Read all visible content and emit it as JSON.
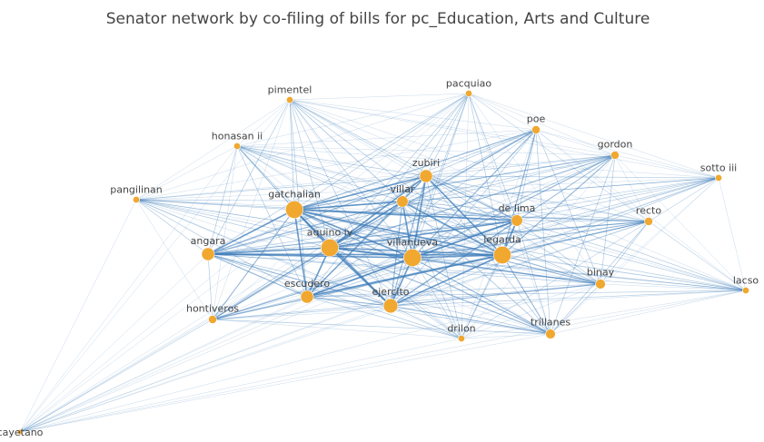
{
  "title": "Senator network by co-filing of bills for pc_Education, Arts and Culture",
  "colors": {
    "node_fill": "#f0a830",
    "edge": "#3a7ab8",
    "text": "#444444"
  },
  "chart_data": {
    "type": "network",
    "nodes": [
      {
        "id": "pimentel",
        "label": "pimentel",
        "size": 2
      },
      {
        "id": "pacquiao",
        "label": "pacquiao",
        "size": 2
      },
      {
        "id": "poe",
        "label": "poe",
        "size": 3
      },
      {
        "id": "honasan",
        "label": "honasan ii",
        "size": 2
      },
      {
        "id": "gordon",
        "label": "gordon",
        "size": 3
      },
      {
        "id": "zubiri",
        "label": "zubiri",
        "size": 6
      },
      {
        "id": "sotto",
        "label": "sotto iii",
        "size": 2
      },
      {
        "id": "pangilinan",
        "label": "pangilinan",
        "size": 2
      },
      {
        "id": "gatchalian",
        "label": "gatchalian",
        "size": 9
      },
      {
        "id": "villar",
        "label": "villar",
        "size": 5
      },
      {
        "id": "delima",
        "label": "de lima",
        "size": 5
      },
      {
        "id": "recto",
        "label": "recto",
        "size": 3
      },
      {
        "id": "aquino",
        "label": "aquino iv",
        "size": 9
      },
      {
        "id": "angara",
        "label": "angara",
        "size": 6
      },
      {
        "id": "villanueva",
        "label": "villanueva",
        "size": 9
      },
      {
        "id": "legarda",
        "label": "legarda",
        "size": 9
      },
      {
        "id": "binay",
        "label": "binay",
        "size": 4
      },
      {
        "id": "lacso",
        "label": "lacso",
        "size": 2
      },
      {
        "id": "escudero",
        "label": "escudero",
        "size": 6
      },
      {
        "id": "ejercito",
        "label": "ejercito",
        "size": 7
      },
      {
        "id": "hontiveros",
        "label": "hontiveros",
        "size": 3
      },
      {
        "id": "drilon",
        "label": "drilon",
        "size": 2
      },
      {
        "id": "trillanes",
        "label": "trillanes",
        "size": 4
      },
      {
        "id": "cayetano",
        "label": "cayetano",
        "size": 1
      }
    ]
  }
}
